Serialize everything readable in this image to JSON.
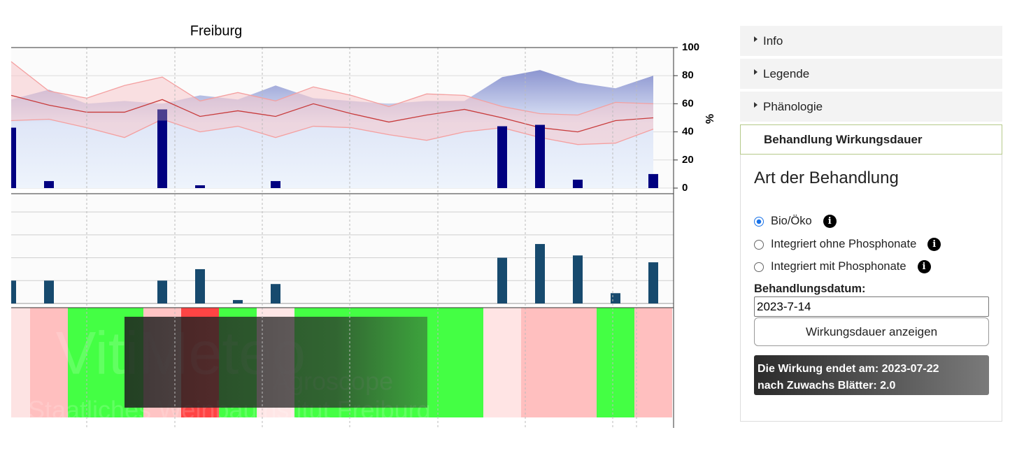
{
  "chart_data": [
    {
      "type": "line",
      "title": "Freiburg",
      "ylabel": "%",
      "categories": [
        null,
        null,
        null,
        null,
        null,
        null,
        null,
        null,
        null,
        null,
        null,
        null,
        null,
        null,
        null,
        null,
        null,
        null
      ],
      "ylim": [
        0,
        100
      ],
      "yticks": [
        0,
        20,
        40,
        60,
        80,
        100
      ],
      "grid": true,
      "band": [
        1,
        3
      ],
      "band_color": "#f8c8cc",
      "series": [
        {
          "type": "area",
          "color": "#8c95d0",
          "values": [
            63,
            70,
            60,
            62,
            60,
            66,
            63,
            73,
            64,
            62,
            60,
            62,
            62,
            79,
            84,
            75,
            71,
            80
          ]
        },
        {
          "type": "line",
          "color": "#f4a0a0",
          "values": [
            90,
            69,
            64,
            73,
            79,
            62,
            68,
            62,
            72,
            66,
            58,
            67,
            66,
            58,
            53,
            52,
            61,
            60
          ]
        },
        {
          "type": "line",
          "color": "#c83c3c",
          "values": [
            66,
            59,
            54,
            54,
            63,
            51,
            55,
            51,
            60,
            53,
            47,
            52,
            56,
            50,
            43,
            40,
            48,
            50
          ]
        },
        {
          "type": "line",
          "color": "#f4a0a0",
          "values": [
            48,
            49,
            43,
            36,
            49,
            40,
            44,
            36,
            44,
            43,
            38,
            34,
            40,
            43,
            36,
            31,
            32,
            42
          ]
        },
        {
          "type": "bar",
          "color": "#4b3f8f",
          "values": [
            null,
            null,
            null,
            null,
            56,
            null,
            null,
            null,
            null,
            null,
            null,
            null,
            null,
            null,
            null,
            null,
            null,
            null
          ]
        },
        {
          "type": "bar",
          "color": "#000080",
          "values": [
            43,
            5,
            null,
            null,
            48,
            2,
            null,
            5,
            null,
            null,
            null,
            null,
            null,
            44,
            45,
            6,
            null,
            10
          ]
        }
      ]
    },
    {
      "type": "bar",
      "color": "#174a6e",
      "ylim": [
        0,
        4.8
      ],
      "yticks": [
        1,
        2,
        3,
        4
      ],
      "grid": true,
      "values": [
        1.0,
        1.0,
        null,
        null,
        1.0,
        1.5,
        0.15,
        0.85,
        null,
        null,
        null,
        null,
        null,
        2.0,
        2.6,
        2.1,
        0.45,
        1.8
      ]
    },
    {
      "type": "heatmap",
      "colors": [
        "#fde3e3",
        "#ffbfbf",
        "#44ff44",
        "#44ff44",
        "#ffc4c4",
        "#ff4444",
        "#44ff44",
        "#ffe6e6",
        "#44ff44",
        "#44ff44",
        "#44ff44",
        "#44ff44",
        "#44ff44",
        "#ffe4e4",
        "#ffbfbf",
        "#ffbfbf",
        "#44ff44",
        "#ffbfbf"
      ],
      "watermark": [
        "VitiMeteo",
        "Agroscope",
        "Staatliches Weinbauinstitut Freiburg"
      ]
    }
  ],
  "sidebar": {
    "sections": [
      "Info",
      "Legende",
      "Phänologie",
      "Behandlung Wirkungsdauer"
    ],
    "heading": "Art der Behandlung",
    "options": [
      "Bio/Öko",
      "Integriert ohne Phosphonate",
      "Integriert mit Phosphonate"
    ],
    "date_label": "Behandlungsdatum:",
    "date_value": "2023-7-14",
    "button": "Wirkungsdauer anzeigen",
    "result": [
      "Die Wirkung endet am: 2023-07-22",
      "nach Zuwachs Blätter: 2.0"
    ]
  }
}
